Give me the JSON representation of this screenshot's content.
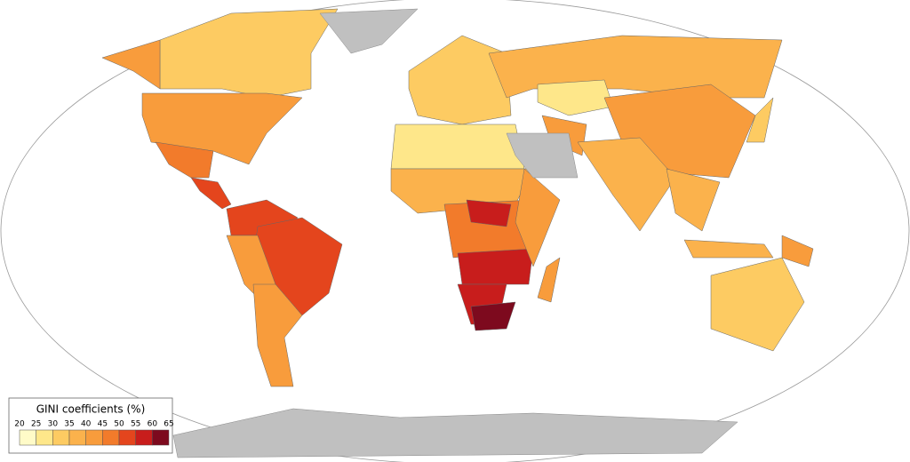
{
  "legend": {
    "title": "GINI coefficients (%)",
    "ticks": [
      20,
      25,
      30,
      35,
      40,
      45,
      50,
      55,
      60,
      65
    ],
    "colors": [
      "#fffbc8",
      "#fee78a",
      "#fdcb62",
      "#fbb24c",
      "#f89c3c",
      "#f27b2b",
      "#e4451d",
      "#c81d1c",
      "#7d0a1e"
    ]
  },
  "map": {
    "values": [
      33,
      41,
      41,
      48,
      52,
      50,
      53,
      43,
      42,
      30,
      38,
      27,
      42,
      42,
      35,
      38,
      38,
      42,
      32,
      28,
      36,
      45,
      57,
      40,
      55,
      59,
      63,
      43,
      34
    ]
  }
}
